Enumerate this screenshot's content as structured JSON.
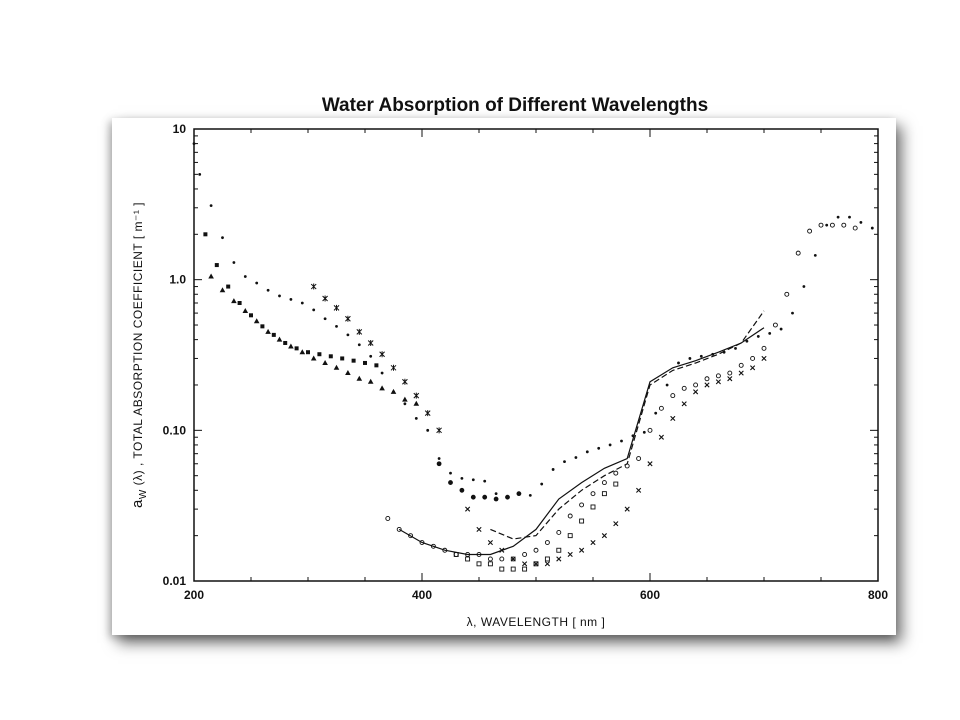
{
  "title": "Water Absorption of Different Wavelengths",
  "chart_data": {
    "type": "scatter",
    "title": "Water Absorption of Different Wavelengths",
    "xlabel": "λ, WAVELENGTH [ nm ]",
    "ylabel": "a_W(λ), TOTAL ABSORPTION COEFFICIENT [ m⁻¹ ]",
    "ylabel_main": "a",
    "ylabel_sub": "W",
    "ylabel_rest": " (λ) ,  TOTAL ABSORPTION COEFFICIENT [ m⁻¹ ]",
    "xlim": [
      200,
      800
    ],
    "ylim": [
      0.01,
      10
    ],
    "yscale": "log",
    "x_ticks": [
      200,
      400,
      600,
      800
    ],
    "x_tick_labels": [
      "200",
      "400",
      "600",
      "800"
    ],
    "y_ticks": [
      0.01,
      0.1,
      1,
      10
    ],
    "y_tick_labels": [
      "0.01",
      "0.10",
      "1.0",
      "10"
    ],
    "grid": false,
    "color": "#111111",
    "series": [
      {
        "marker": "dot",
        "x": [
          200,
          205,
          215,
          225,
          235,
          245,
          255,
          265,
          275,
          285,
          295,
          305,
          315,
          325,
          335,
          345,
          355,
          365,
          375,
          385,
          395,
          405,
          415,
          425,
          435,
          445,
          455,
          465,
          475,
          485,
          495,
          505,
          515,
          525,
          535,
          545,
          555,
          565,
          575,
          585,
          595,
          605,
          615,
          625,
          635,
          645,
          655,
          665,
          675,
          685,
          695,
          705,
          715,
          725,
          735,
          745,
          755,
          765,
          775,
          785,
          795
        ],
        "y": [
          8.0,
          5.0,
          3.1,
          1.9,
          1.3,
          1.05,
          0.95,
          0.85,
          0.78,
          0.74,
          0.7,
          0.63,
          0.55,
          0.49,
          0.43,
          0.37,
          0.31,
          0.24,
          0.18,
          0.15,
          0.12,
          0.1,
          0.065,
          0.052,
          0.048,
          0.047,
          0.046,
          0.038,
          0.036,
          0.038,
          0.037,
          0.044,
          0.055,
          0.062,
          0.066,
          0.072,
          0.076,
          0.08,
          0.085,
          0.092,
          0.097,
          0.13,
          0.2,
          0.28,
          0.3,
          0.31,
          0.32,
          0.33,
          0.35,
          0.39,
          0.42,
          0.44,
          0.47,
          0.6,
          0.9,
          1.45,
          2.3,
          2.6,
          2.6,
          2.4,
          2.2
        ]
      },
      {
        "marker": "triangle",
        "x": [
          215,
          225,
          235,
          245,
          255,
          265,
          275,
          285,
          295,
          305,
          315,
          325,
          335,
          345,
          355,
          365,
          375,
          385,
          395
        ],
        "y": [
          1.05,
          0.85,
          0.72,
          0.62,
          0.53,
          0.45,
          0.4,
          0.36,
          0.33,
          0.3,
          0.28,
          0.26,
          0.24,
          0.22,
          0.21,
          0.19,
          0.18,
          0.16,
          0.15
        ]
      },
      {
        "marker": "square",
        "x": [
          210,
          220,
          230,
          240,
          250,
          260,
          270,
          280,
          290,
          300,
          310,
          320,
          330,
          340,
          350,
          360
        ],
        "y": [
          2.0,
          1.25,
          0.9,
          0.7,
          0.58,
          0.49,
          0.43,
          0.38,
          0.35,
          0.33,
          0.32,
          0.31,
          0.3,
          0.29,
          0.28,
          0.27
        ]
      },
      {
        "marker": "star",
        "x": [
          305,
          315,
          325,
          335,
          345,
          355,
          365,
          375,
          385,
          395,
          405,
          415
        ],
        "y": [
          0.9,
          0.75,
          0.65,
          0.55,
          0.45,
          0.38,
          0.32,
          0.26,
          0.21,
          0.17,
          0.13,
          0.1
        ]
      },
      {
        "marker": "filled-circle",
        "x": [
          415,
          425,
          435,
          445,
          455,
          465,
          475,
          485
        ],
        "y": [
          0.06,
          0.045,
          0.04,
          0.036,
          0.036,
          0.035,
          0.036,
          0.038
        ]
      },
      {
        "marker": "open-circle",
        "x": [
          370,
          380,
          390,
          400,
          410,
          420,
          430,
          440,
          450,
          460,
          470,
          480,
          490,
          500,
          510,
          520,
          530,
          540,
          550,
          560,
          570,
          580,
          590,
          600,
          610,
          620,
          630,
          640,
          650,
          660,
          670,
          680,
          690,
          700,
          710,
          720,
          730,
          740,
          750,
          760,
          770,
          780
        ],
        "y": [
          0.026,
          0.022,
          0.02,
          0.018,
          0.017,
          0.016,
          0.015,
          0.015,
          0.015,
          0.014,
          0.014,
          0.014,
          0.015,
          0.016,
          0.018,
          0.021,
          0.027,
          0.032,
          0.038,
          0.045,
          0.052,
          0.058,
          0.065,
          0.1,
          0.14,
          0.17,
          0.19,
          0.2,
          0.22,
          0.23,
          0.24,
          0.27,
          0.3,
          0.35,
          0.5,
          0.8,
          1.5,
          2.1,
          2.3,
          2.3,
          2.3,
          2.2
        ]
      },
      {
        "marker": "open-square",
        "x": [
          430,
          440,
          450,
          460,
          470,
          480,
          490,
          500,
          510,
          520,
          530,
          540,
          550,
          560,
          570
        ],
        "y": [
          0.015,
          0.014,
          0.013,
          0.013,
          0.012,
          0.012,
          0.012,
          0.013,
          0.014,
          0.016,
          0.02,
          0.025,
          0.031,
          0.038,
          0.044
        ]
      },
      {
        "marker": "cross",
        "x": [
          440,
          450,
          460,
          470,
          480,
          490,
          500,
          510,
          520,
          530,
          540,
          550,
          560,
          570,
          580,
          590,
          600,
          610,
          620,
          630,
          640,
          650,
          660,
          670,
          680,
          690,
          700
        ],
        "y": [
          0.03,
          0.022,
          0.018,
          0.016,
          0.014,
          0.013,
          0.013,
          0.013,
          0.014,
          0.015,
          0.016,
          0.018,
          0.02,
          0.024,
          0.03,
          0.04,
          0.06,
          0.09,
          0.12,
          0.15,
          0.18,
          0.2,
          0.21,
          0.22,
          0.24,
          0.26,
          0.3
        ]
      },
      {
        "marker": "line-solid",
        "x": [
          380,
          400,
          420,
          440,
          460,
          480,
          500,
          520,
          540,
          560,
          580,
          600,
          620,
          640,
          660,
          680,
          700
        ],
        "y": [
          0.022,
          0.018,
          0.016,
          0.015,
          0.015,
          0.017,
          0.022,
          0.035,
          0.045,
          0.056,
          0.065,
          0.21,
          0.26,
          0.29,
          0.33,
          0.38,
          0.48
        ]
      },
      {
        "marker": "line-dashed",
        "x": [
          460,
          480,
          500,
          520,
          540,
          560,
          580,
          600,
          620,
          640,
          660,
          680,
          700
        ],
        "y": [
          0.022,
          0.019,
          0.02,
          0.03,
          0.04,
          0.05,
          0.06,
          0.2,
          0.25,
          0.28,
          0.32,
          0.38,
          0.62
        ]
      }
    ]
  }
}
